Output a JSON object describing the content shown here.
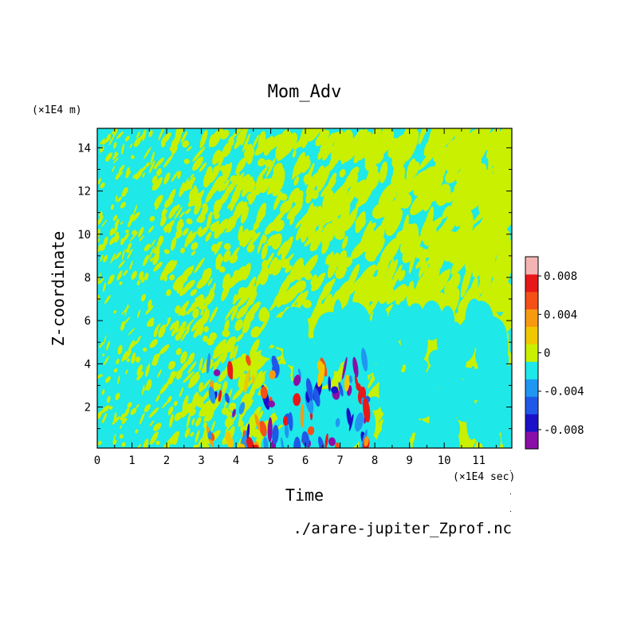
{
  "chart_data": {
    "type": "heatmap",
    "title": "Mom_Adv",
    "xlabel": "Time",
    "ylabel": "Z-coordinate",
    "x_unit": "(×1E4 sec)",
    "y_unit": "(×1E4 m)",
    "xlim": [
      0,
      11.95
    ],
    "ylim": [
      0.1,
      14.9
    ],
    "x_ticks": [
      "0",
      "1",
      "2",
      "3",
      "4",
      "5",
      "6",
      "7",
      "8",
      "9",
      "10",
      "11"
    ],
    "y_ticks": [
      "2",
      "4",
      "6",
      "8",
      "10",
      "12",
      "14"
    ],
    "colorbar": {
      "levels": [
        -0.01,
        -0.008,
        -0.006,
        -0.004,
        -0.002,
        0,
        0.002,
        0.004,
        0.006,
        0.008,
        0.01
      ],
      "colors": [
        "#8a0ea8",
        "#1a10c8",
        "#1f58e8",
        "#1f96f2",
        "#1ee8e8",
        "#c8f000",
        "#f0c800",
        "#f89a10",
        "#f55018",
        "#e81818",
        "#f4b4b4"
      ],
      "tick_labels": [
        "0.008",
        "0.004",
        "0",
        "-0.004",
        "-0.008"
      ]
    },
    "dominant_values": [
      "slightly negative (cyan)",
      "slightly positive (yellow-green)"
    ],
    "strong_anomaly_region": {
      "x_range": [
        3.2,
        7.8
      ],
      "z_range": [
        0.1,
        4.2
      ]
    }
  },
  "source_file": "./arare-jupiter_Zprof.nc"
}
